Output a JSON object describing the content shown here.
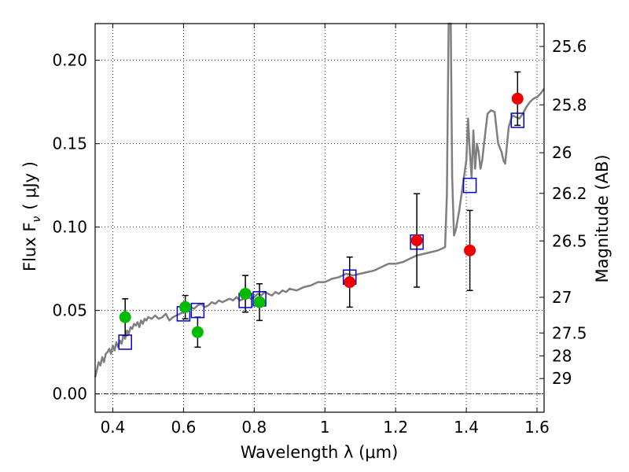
{
  "chart_data": {
    "type": "scatter",
    "title": "",
    "xlabel_text": "Wavelength  λ (μm)",
    "ylabel_left_text": "Flux  F",
    "ylabel_left_sub": "ν",
    "ylabel_left_unit": "( μJy )",
    "ylabel_right": "Magnitude (AB)",
    "xlim": [
      0.35,
      1.62
    ],
    "ylim": [
      -0.011,
      0.222
    ],
    "grid": true,
    "x_ticks": [
      {
        "value": 0.4,
        "label": "0.4"
      },
      {
        "value": 0.6,
        "label": "0.6"
      },
      {
        "value": 0.8,
        "label": "0.8"
      },
      {
        "value": 1.0,
        "label": "1"
      },
      {
        "value": 1.2,
        "label": "1.2"
      },
      {
        "value": 1.4,
        "label": "1.4"
      },
      {
        "value": 1.6,
        "label": "1.6"
      }
    ],
    "y_ticks": [
      {
        "value": 0.0,
        "label": "0.00"
      },
      {
        "value": 0.05,
        "label": "0.05"
      },
      {
        "value": 0.1,
        "label": "0.10"
      },
      {
        "value": 0.15,
        "label": "0.15"
      },
      {
        "value": 0.2,
        "label": "0.20"
      }
    ],
    "mag_ticks": [
      {
        "flux": 0.2083,
        "label": "25.6"
      },
      {
        "flux": 0.1733,
        "label": "25.8"
      },
      {
        "flux": 0.1446,
        "label": "26"
      },
      {
        "flux": 0.1202,
        "label": "26.2"
      },
      {
        "flux": 0.0917,
        "label": "26.5"
      },
      {
        "flux": 0.0579,
        "label": "27"
      },
      {
        "flux": 0.0365,
        "label": "27.5"
      },
      {
        "flux": 0.0228,
        "label": "28"
      },
      {
        "flux": 0.0092,
        "label": "29"
      }
    ],
    "series": [
      {
        "kind": "line",
        "color": "#7f7f7f",
        "x": [
          0.35,
          0.36,
          0.365,
          0.37,
          0.375,
          0.38,
          0.385,
          0.39,
          0.395,
          0.4,
          0.405,
          0.41,
          0.415,
          0.42,
          0.425,
          0.43,
          0.435,
          0.44,
          0.445,
          0.45,
          0.455,
          0.46,
          0.465,
          0.47,
          0.475,
          0.48,
          0.485,
          0.49,
          0.495,
          0.5,
          0.51,
          0.52,
          0.53,
          0.54,
          0.55,
          0.56,
          0.57,
          0.58,
          0.59,
          0.6,
          0.61,
          0.62,
          0.63,
          0.64,
          0.65,
          0.66,
          0.67,
          0.68,
          0.69,
          0.7,
          0.71,
          0.72,
          0.73,
          0.74,
          0.75,
          0.76,
          0.77,
          0.78,
          0.79,
          0.8,
          0.81,
          0.82,
          0.83,
          0.84,
          0.85,
          0.86,
          0.87,
          0.88,
          0.89,
          0.9,
          0.92,
          0.94,
          0.96,
          0.98,
          1.0,
          1.02,
          1.04,
          1.06,
          1.08,
          1.1,
          1.12,
          1.14,
          1.16,
          1.18,
          1.2,
          1.22,
          1.24,
          1.26,
          1.28,
          1.3,
          1.32,
          1.34,
          1.345,
          1.35,
          1.353,
          1.356,
          1.36,
          1.365,
          1.37,
          1.38,
          1.39,
          1.4,
          1.405,
          1.41,
          1.415,
          1.42,
          1.425,
          1.43,
          1.435,
          1.44,
          1.445,
          1.45,
          1.46,
          1.47,
          1.48,
          1.49,
          1.5,
          1.505,
          1.51,
          1.52,
          1.53,
          1.54,
          1.55,
          1.56,
          1.57,
          1.58,
          1.59,
          1.6,
          1.61,
          1.62
        ],
        "y": [
          0.01,
          0.019,
          0.017,
          0.022,
          0.019,
          0.024,
          0.025,
          0.027,
          0.024,
          0.029,
          0.026,
          0.031,
          0.028,
          0.032,
          0.03,
          0.035,
          0.033,
          0.038,
          0.036,
          0.04,
          0.039,
          0.042,
          0.041,
          0.043,
          0.04,
          0.044,
          0.042,
          0.045,
          0.044,
          0.046,
          0.045,
          0.047,
          0.045,
          0.046,
          0.048,
          0.044,
          0.046,
          0.047,
          0.048,
          0.049,
          0.05,
          0.052,
          0.051,
          0.053,
          0.054,
          0.052,
          0.053,
          0.055,
          0.054,
          0.056,
          0.055,
          0.056,
          0.057,
          0.056,
          0.058,
          0.056,
          0.057,
          0.059,
          0.057,
          0.058,
          0.06,
          0.059,
          0.061,
          0.06,
          0.059,
          0.061,
          0.06,
          0.062,
          0.061,
          0.063,
          0.062,
          0.064,
          0.065,
          0.067,
          0.067,
          0.069,
          0.07,
          0.072,
          0.071,
          0.072,
          0.073,
          0.074,
          0.076,
          0.078,
          0.078,
          0.079,
          0.081,
          0.083,
          0.084,
          0.085,
          0.086,
          0.088,
          0.12,
          0.222,
          0.222,
          0.222,
          0.13,
          0.095,
          0.098,
          0.11,
          0.125,
          0.14,
          0.165,
          0.145,
          0.13,
          0.158,
          0.135,
          0.15,
          0.145,
          0.135,
          0.14,
          0.15,
          0.168,
          0.17,
          0.169,
          0.15,
          0.145,
          0.14,
          0.138,
          0.16,
          0.167,
          0.166,
          0.165,
          0.168,
          0.172,
          0.175,
          0.177,
          0.178,
          0.18,
          0.183
        ]
      },
      {
        "kind": "markers-square",
        "color": "#0000cc",
        "x": [
          0.435,
          0.6,
          0.64,
          0.775,
          0.815,
          1.07,
          1.26,
          1.41,
          1.545
        ],
        "y": [
          0.031,
          0.048,
          0.05,
          0.056,
          0.057,
          0.07,
          0.091,
          0.125,
          0.164
        ]
      },
      {
        "kind": "markers-circle",
        "color": "#00bb00",
        "x": [
          0.435,
          0.605,
          0.64,
          0.775,
          0.815
        ],
        "y": [
          0.046,
          0.052,
          0.037,
          0.06,
          0.055
        ],
        "err": [
          0.011,
          0.007,
          0.009,
          0.011,
          0.011
        ]
      },
      {
        "kind": "markers-circle",
        "color": "#ee0000",
        "x": [
          1.07,
          1.26,
          1.41,
          1.545
        ],
        "y": [
          0.067,
          0.092,
          0.086,
          0.177
        ],
        "err": [
          0.015,
          0.028,
          0.024,
          0.016
        ]
      }
    ]
  }
}
